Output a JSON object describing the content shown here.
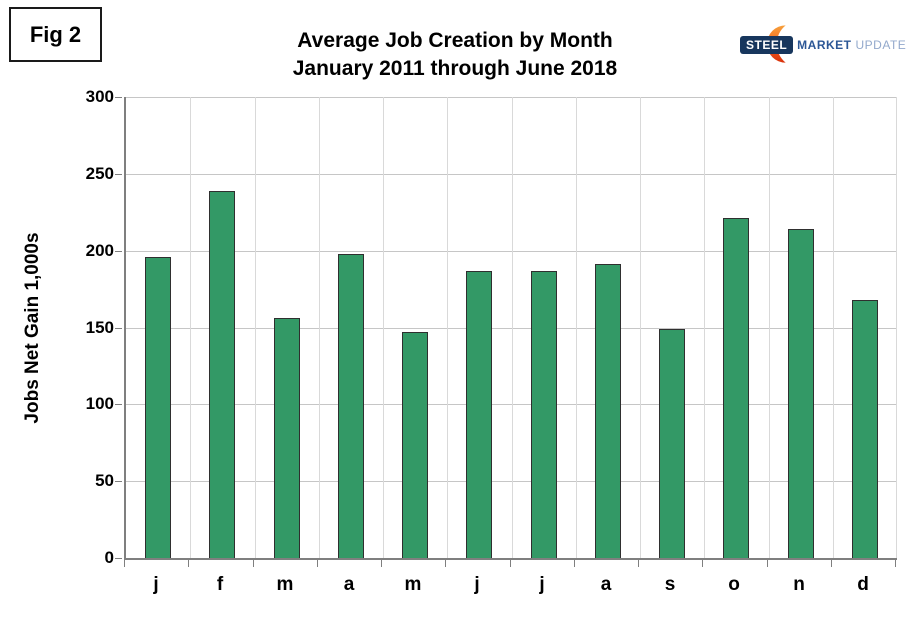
{
  "figure": {
    "label": "Fig 2"
  },
  "title": {
    "line1": "Average Job Creation by Month",
    "line2": "January 2011 through June 2018"
  },
  "logo": {
    "steel": "STEEL",
    "market": "MARKET",
    "update": "UPDATE",
    "badge_color": "#17365d",
    "market_color": "#2c5796",
    "update_color": "#93a9cc",
    "crescent_colors": [
      "#f7a13b",
      "#f26522",
      "#d9310b"
    ]
  },
  "chart_data": {
    "type": "bar",
    "title": "Average Job Creation by Month",
    "subtitle": "January 2011 through June 2018",
    "categories": [
      "j",
      "f",
      "m",
      "a",
      "m",
      "j",
      "j",
      "a",
      "s",
      "o",
      "n",
      "d"
    ],
    "values": [
      196,
      239,
      156,
      198,
      147,
      187,
      187,
      191,
      149,
      221,
      214,
      168
    ],
    "xlabel": "",
    "ylabel": "Jobs Net Gain 1,000s",
    "ylim": [
      0,
      300
    ],
    "yticks": [
      0,
      50,
      100,
      150,
      200,
      250,
      300
    ],
    "grid": true,
    "legend": false,
    "bar_color": "#339966",
    "bar_border_color": "#2f2f2f",
    "hgrid_color": "#c6c6c6",
    "vgrid_color": "#d9d9d9",
    "axis_color": "#7f7f7f"
  }
}
